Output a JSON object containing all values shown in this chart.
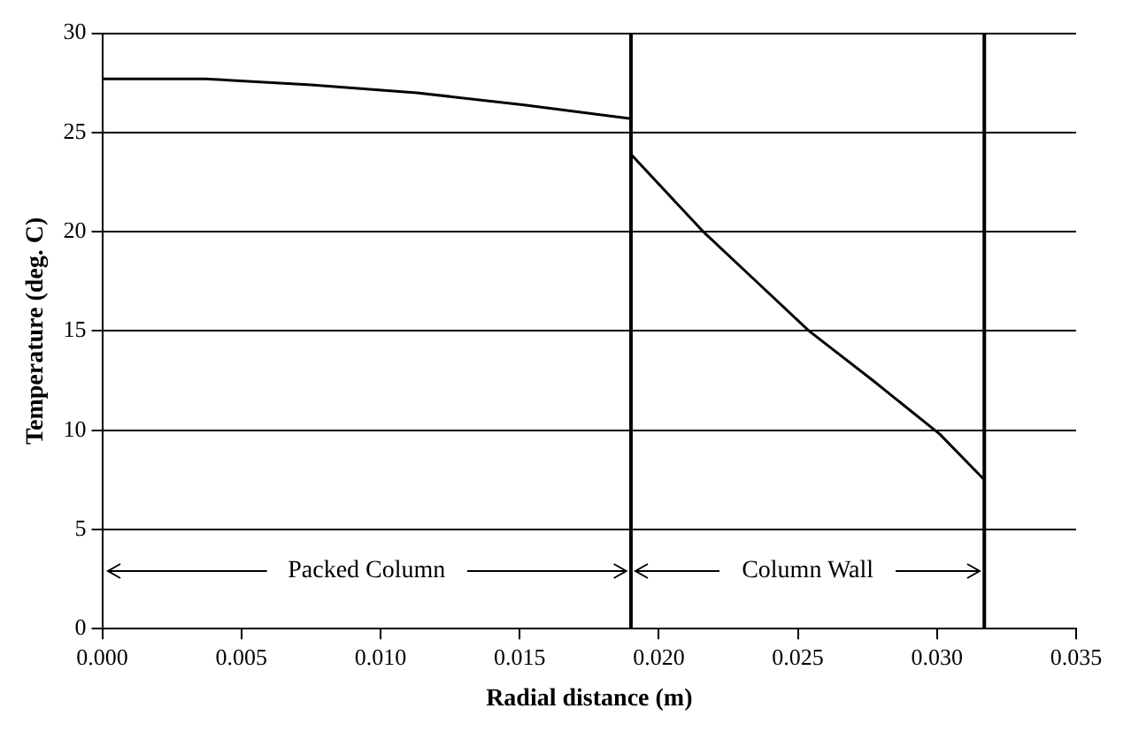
{
  "chart_data": {
    "type": "line",
    "xlabel": "Radial distance (m)",
    "ylabel": "Temperature (deg. C)",
    "xlim": [
      0,
      0.035
    ],
    "xticks": [
      {
        "value": 0,
        "label": "0.000"
      },
      {
        "value": 0.005,
        "label": "0.005"
      },
      {
        "value": 0.01,
        "label": "0.010"
      },
      {
        "value": 0.015,
        "label": "0.015"
      },
      {
        "value": 0.02,
        "label": "0.020"
      },
      {
        "value": 0.025,
        "label": "0.025"
      },
      {
        "value": 0.03,
        "label": "0.030"
      },
      {
        "value": 0.035,
        "label": "0.035"
      }
    ],
    "ylim": [
      0,
      30
    ],
    "yticks": [
      0,
      5,
      10,
      15,
      20,
      25,
      30
    ],
    "grid": "y",
    "legend": false,
    "marker": "none",
    "line_style": "solid",
    "series": [
      {
        "color": "#000000",
        "x": [
          0,
          0.0037,
          0.0075,
          0.0113,
          0.0151,
          0.019
        ],
        "values": [
          27.7,
          27.7,
          27.4,
          27.0,
          26.4,
          25.7
        ]
      },
      {
        "color": "#000000",
        "x": [
          0.019,
          0.0216,
          0.0235,
          0.0254,
          0.0277,
          0.0301,
          0.0317
        ],
        "values": [
          23.9,
          20.0,
          17.5,
          15.0,
          12.5,
          9.8,
          7.5
        ]
      }
    ],
    "ref_lines": [
      {
        "axis": "x",
        "value": 0.019,
        "color": "#000000"
      },
      {
        "axis": "x",
        "value": 0.0317,
        "color": "#000000"
      }
    ],
    "annotations": [
      {
        "text": "Packed Column",
        "x": 0.019,
        "y": 2.9
      },
      {
        "text": "Column Wall",
        "x": 0.0317,
        "y": 2.9
      }
    ]
  }
}
